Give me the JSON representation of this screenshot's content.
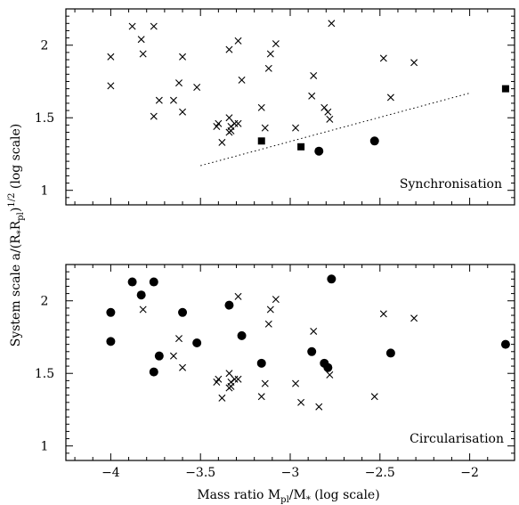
{
  "chart_data": {
    "shared": {
      "xlabel_main": "Mass ratio M",
      "xlabel_sub1": "pl",
      "xlabel_mid": "/M",
      "xlabel_sub2": "*",
      "xlabel_tail": " (log scale)",
      "ylabel_main": "System scale a/(R",
      "ylabel_sub1": "*",
      "ylabel_mid": "R",
      "ylabel_sub2": "pl",
      "ylabel_close": ")",
      "ylabel_sup": "1/2",
      "ylabel_tail": " (log scale)",
      "xlim": [
        -4.25,
        -1.75
      ],
      "x_ticks": [
        -4,
        -3.5,
        -3,
        -2.5,
        -2
      ],
      "x_tick_labels": [
        "−4",
        "−3.5",
        "−3",
        "−2.5",
        "−2"
      ],
      "ylim": [
        0.9,
        2.25
      ],
      "y_ticks": [
        1,
        1.5,
        2
      ],
      "y_tick_labels": [
        "1",
        "1.5",
        "2"
      ]
    },
    "panels": [
      {
        "type": "scatter",
        "label": "Synchronisation",
        "series": [
          {
            "marker": "cross",
            "points": [
              [
                -4.0,
                1.92
              ],
              [
                -4.0,
                1.72
              ],
              [
                -3.88,
                2.13
              ],
              [
                -3.83,
                2.04
              ],
              [
                -3.82,
                1.94
              ],
              [
                -3.76,
                2.13
              ],
              [
                -3.73,
                1.62
              ],
              [
                -3.76,
                1.51
              ],
              [
                -3.65,
                1.62
              ],
              [
                -3.62,
                1.74
              ],
              [
                -3.6,
                1.92
              ],
              [
                -3.6,
                1.54
              ],
              [
                -3.52,
                1.71
              ],
              [
                -3.41,
                1.44
              ],
              [
                -3.4,
                1.46
              ],
              [
                -3.38,
                1.33
              ],
              [
                -3.34,
                1.97
              ],
              [
                -3.34,
                1.5
              ],
              [
                -3.34,
                1.4
              ],
              [
                -3.33,
                1.44
              ],
              [
                -3.33,
                1.41
              ],
              [
                -3.31,
                1.46
              ],
              [
                -3.29,
                2.03
              ],
              [
                -3.29,
                1.46
              ],
              [
                -3.27,
                1.76
              ],
              [
                -3.16,
                1.57
              ],
              [
                -3.14,
                1.43
              ],
              [
                -3.12,
                1.84
              ],
              [
                -3.11,
                1.94
              ],
              [
                -3.08,
                2.01
              ],
              [
                -2.97,
                1.43
              ],
              [
                -2.88,
                1.65
              ],
              [
                -2.87,
                1.79
              ],
              [
                -2.81,
                1.57
              ],
              [
                -2.79,
                1.54
              ],
              [
                -2.78,
                1.49
              ],
              [
                -2.77,
                2.15
              ],
              [
                -2.48,
                1.91
              ],
              [
                -2.44,
                1.64
              ],
              [
                -2.31,
                1.88
              ]
            ]
          },
          {
            "marker": "square",
            "points": [
              [
                -3.16,
                1.34
              ],
              [
                -2.94,
                1.3
              ],
              [
                -1.8,
                1.7
              ]
            ]
          },
          {
            "marker": "circle",
            "points": [
              [
                -2.84,
                1.27
              ],
              [
                -2.53,
                1.34
              ]
            ]
          }
        ],
        "dotted_line": [
          [
            -3.5,
            1.17
          ],
          [
            -2.0,
            1.67
          ]
        ]
      },
      {
        "type": "scatter",
        "label": "Circularisation",
        "series": [
          {
            "marker": "cross",
            "points": [
              [
                -3.82,
                1.94
              ],
              [
                -3.65,
                1.62
              ],
              [
                -3.62,
                1.74
              ],
              [
                -3.6,
                1.54
              ],
              [
                -3.41,
                1.44
              ],
              [
                -3.4,
                1.46
              ],
              [
                -3.38,
                1.33
              ],
              [
                -3.34,
                1.5
              ],
              [
                -3.34,
                1.4
              ],
              [
                -3.33,
                1.44
              ],
              [
                -3.33,
                1.41
              ],
              [
                -3.31,
                1.46
              ],
              [
                -3.29,
                2.03
              ],
              [
                -3.29,
                1.46
              ],
              [
                -3.16,
                1.34
              ],
              [
                -3.14,
                1.43
              ],
              [
                -3.12,
                1.84
              ],
              [
                -3.11,
                1.94
              ],
              [
                -3.08,
                2.01
              ],
              [
                -2.97,
                1.43
              ],
              [
                -2.94,
                1.3
              ],
              [
                -2.87,
                1.79
              ],
              [
                -2.84,
                1.27
              ],
              [
                -2.78,
                1.49
              ],
              [
                -2.53,
                1.34
              ],
              [
                -2.48,
                1.91
              ],
              [
                -2.31,
                1.88
              ]
            ]
          },
          {
            "marker": "circle",
            "points": [
              [
                -4.0,
                1.92
              ],
              [
                -4.0,
                1.72
              ],
              [
                -3.88,
                2.13
              ],
              [
                -3.83,
                2.04
              ],
              [
                -3.76,
                2.13
              ],
              [
                -3.73,
                1.62
              ],
              [
                -3.76,
                1.51
              ],
              [
                -3.6,
                1.92
              ],
              [
                -3.52,
                1.71
              ],
              [
                -3.34,
                1.97
              ],
              [
                -3.27,
                1.76
              ],
              [
                -3.16,
                1.57
              ],
              [
                -2.88,
                1.65
              ],
              [
                -2.81,
                1.57
              ],
              [
                -2.79,
                1.54
              ],
              [
                -2.77,
                2.15
              ],
              [
                -2.44,
                1.64
              ],
              [
                -1.8,
                1.7
              ]
            ]
          }
        ]
      }
    ]
  }
}
